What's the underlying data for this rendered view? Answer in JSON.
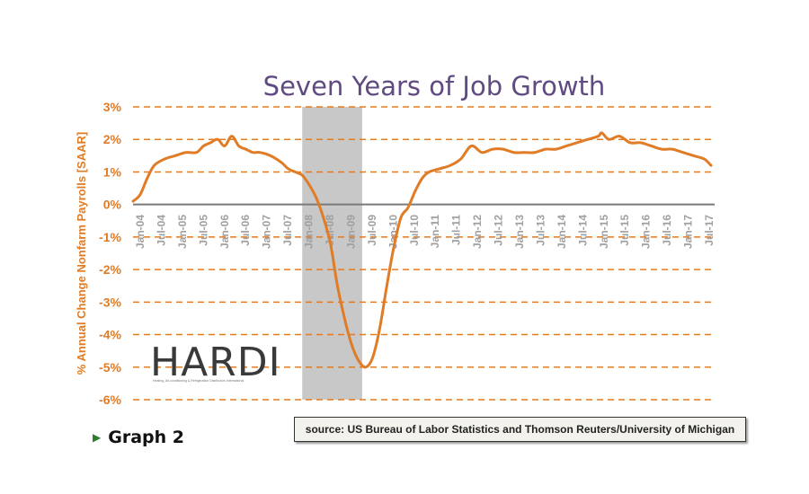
{
  "caption": {
    "arrow_icon": "triangle-right-icon",
    "text": "Graph 2"
  },
  "source": "source: US Bureau of Labor Statistics and Thomson Reuters/University of Michigan",
  "logo": {
    "text": "HARDI",
    "tagline": "Heating, Air-conditioning & Refrigeration Distributors International"
  },
  "colors": {
    "line": "#e07b26",
    "grid": "#e07b26",
    "recession": "#c8c8c8",
    "title": "#5f4b82"
  },
  "chart_data": {
    "type": "line",
    "title": "Seven Years of Job Growth",
    "xlabel": "",
    "ylabel": "% Annual Change Nonfarm Payrolls [SAAR]",
    "ylim": [
      -6,
      3
    ],
    "yticks": [
      3,
      2,
      1,
      0,
      -1,
      -2,
      -3,
      -4,
      -5,
      -6
    ],
    "ytick_labels": [
      "3%",
      "2%",
      "1%",
      "0%",
      "-1%",
      "-2%",
      "-3%",
      "-4%",
      "-5%",
      "-6%"
    ],
    "xlim": [
      "2004-01",
      "2017-10"
    ],
    "xtick_labels": [
      "Jan-04",
      "Jul-04",
      "Jan-05",
      "Jul-05",
      "Jan-06",
      "Jul-06",
      "Jan-07",
      "Jul-07",
      "Jan-08",
      "Jul-08",
      "Jan-09",
      "Jul-09",
      "Jan-10",
      "Jul-10",
      "Jan-11",
      "Jul-11",
      "Jan-12",
      "Jul-12",
      "Jan-13",
      "Jul-13",
      "Jan-14",
      "Jul-14",
      "Jan-15",
      "Jul-15",
      "Jan-16",
      "Jul-16",
      "Jan-17",
      "Jul-17"
    ],
    "recession_shading": [
      "2008-01",
      "2009-06"
    ],
    "grid": true,
    "series": [
      {
        "x": [
          "2004-01",
          "2004-03",
          "2004-05",
          "2004-07",
          "2004-10",
          "2005-01",
          "2005-04",
          "2005-07",
          "2005-09",
          "2005-11",
          "2006-01",
          "2006-03",
          "2006-05",
          "2006-07",
          "2006-09",
          "2006-11",
          "2007-01",
          "2007-04",
          "2007-07",
          "2007-09",
          "2007-11",
          "2008-01",
          "2008-03",
          "2008-05",
          "2008-07",
          "2008-09",
          "2008-11",
          "2009-01",
          "2009-03",
          "2009-05",
          "2009-07",
          "2009-09",
          "2009-11",
          "2010-01",
          "2010-03",
          "2010-05",
          "2010-07",
          "2010-09",
          "2010-11",
          "2011-01",
          "2011-04",
          "2011-07",
          "2011-10",
          "2012-01",
          "2012-04",
          "2012-07",
          "2012-10",
          "2013-01",
          "2013-04",
          "2013-07",
          "2013-10",
          "2014-01",
          "2014-04",
          "2014-07",
          "2014-10",
          "2015-01",
          "2015-02",
          "2015-04",
          "2015-07",
          "2015-10",
          "2016-01",
          "2016-04",
          "2016-07",
          "2016-10",
          "2017-01",
          "2017-04",
          "2017-07",
          "2017-09"
        ],
        "values": [
          0.1,
          0.3,
          0.8,
          1.2,
          1.4,
          1.5,
          1.6,
          1.6,
          1.8,
          1.9,
          2.0,
          1.8,
          2.1,
          1.8,
          1.7,
          1.6,
          1.6,
          1.5,
          1.3,
          1.1,
          1.0,
          0.9,
          0.6,
          0.2,
          -0.4,
          -1.2,
          -2.5,
          -3.5,
          -4.3,
          -4.8,
          -5.0,
          -4.7,
          -3.8,
          -2.5,
          -1.3,
          -0.4,
          -0.1,
          0.4,
          0.8,
          1.0,
          1.1,
          1.2,
          1.4,
          1.8,
          1.6,
          1.7,
          1.7,
          1.6,
          1.6,
          1.6,
          1.7,
          1.7,
          1.8,
          1.9,
          2.0,
          2.1,
          2.2,
          2.0,
          2.1,
          1.9,
          1.9,
          1.8,
          1.7,
          1.7,
          1.6,
          1.5,
          1.4,
          1.2
        ]
      }
    ]
  }
}
